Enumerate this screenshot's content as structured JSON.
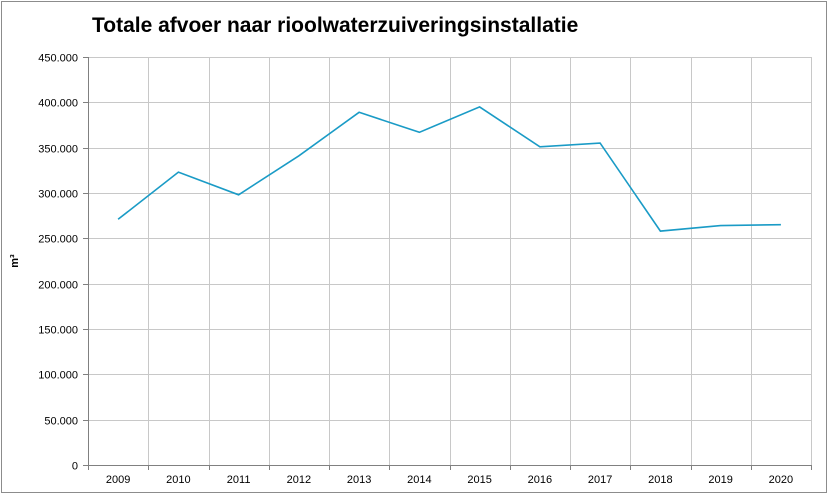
{
  "chart_data": {
    "type": "line",
    "title": "Totale afvoer naar rioolwaterzuiveringsinstallatie",
    "xlabel": "",
    "ylabel": "m³",
    "categories": [
      "2009",
      "2010",
      "2011",
      "2012",
      "2013",
      "2014",
      "2015",
      "2016",
      "2017",
      "2018",
      "2019",
      "2020"
    ],
    "series": [
      {
        "values": [
          271000,
          323000,
          298000,
          341000,
          389000,
          367000,
          395000,
          351000,
          355000,
          258000,
          264000,
          265000
        ]
      }
    ],
    "ylim": [
      0,
      450000
    ],
    "yticks": [
      0,
      50000,
      100000,
      150000,
      200000,
      250000,
      300000,
      350000,
      400000,
      450000
    ],
    "ytick_labels": [
      "0",
      "50.000",
      "100.000",
      "150.000",
      "200.000",
      "250.000",
      "300.000",
      "350.000",
      "400.000",
      "450.000"
    ],
    "grid": true,
    "legend": "none",
    "line_color": "#1a9bc6",
    "grid_color": "#c8c8c8",
    "axis_color": "#808080"
  }
}
